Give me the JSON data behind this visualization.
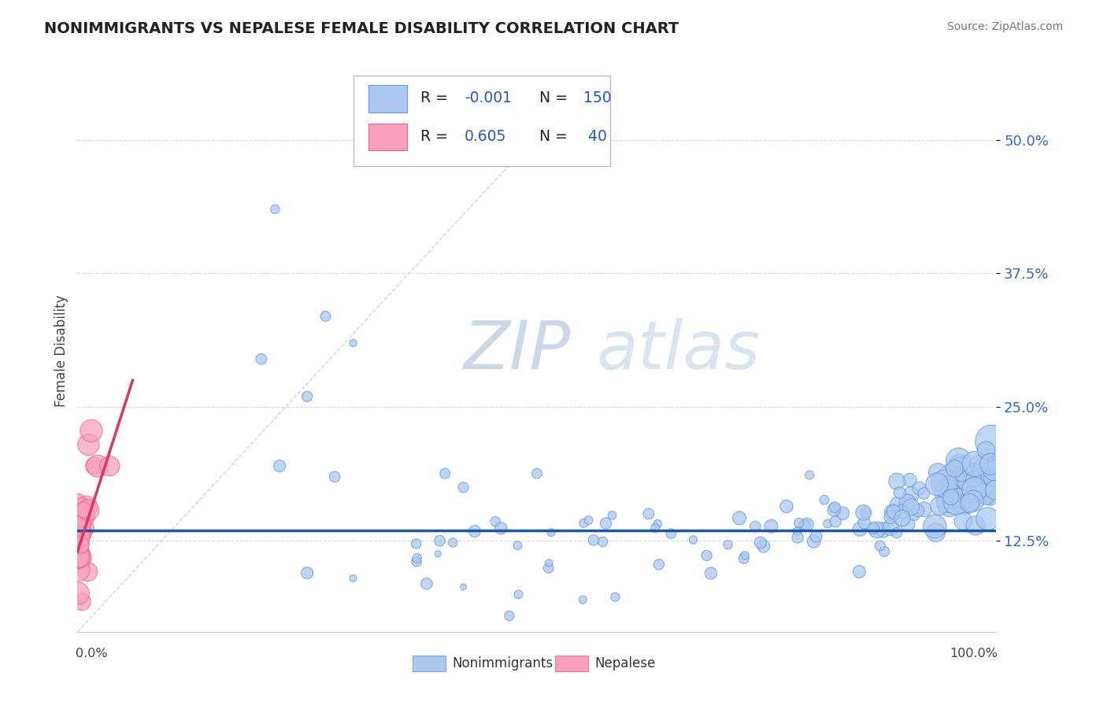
{
  "title": "NONIMMIGRANTS VS NEPALESE FEMALE DISABILITY CORRELATION CHART",
  "source": "Source: ZipAtlas.com",
  "ylabel": "Female Disability",
  "ytick_labels": [
    "12.5%",
    "25.0%",
    "37.5%",
    "50.0%"
  ],
  "ytick_values": [
    0.125,
    0.25,
    0.375,
    0.5
  ],
  "xlim": [
    0.0,
    1.0
  ],
  "ylim": [
    0.04,
    0.565
  ],
  "blue_scatter_color": "#aac8f0",
  "blue_edge_color": "#6699dd",
  "pink_scatter_color": "#f8a0bc",
  "pink_edge_color": "#ee6688",
  "ref_line_color": "#d8c8d0",
  "trend_blue_color": "#1a55aa",
  "trend_pink_color": "#dd3366",
  "grid_color": "#d8d8e8",
  "background_color": "#ffffff",
  "watermark_color": "#ccd8e8",
  "blue_R": -0.001,
  "blue_N": 150,
  "pink_R": 0.605,
  "pink_N": 40,
  "ytick_color": "#3366cc",
  "legend_text_color": "#222222",
  "legend_value_color": "#2255cc",
  "seed": 99
}
